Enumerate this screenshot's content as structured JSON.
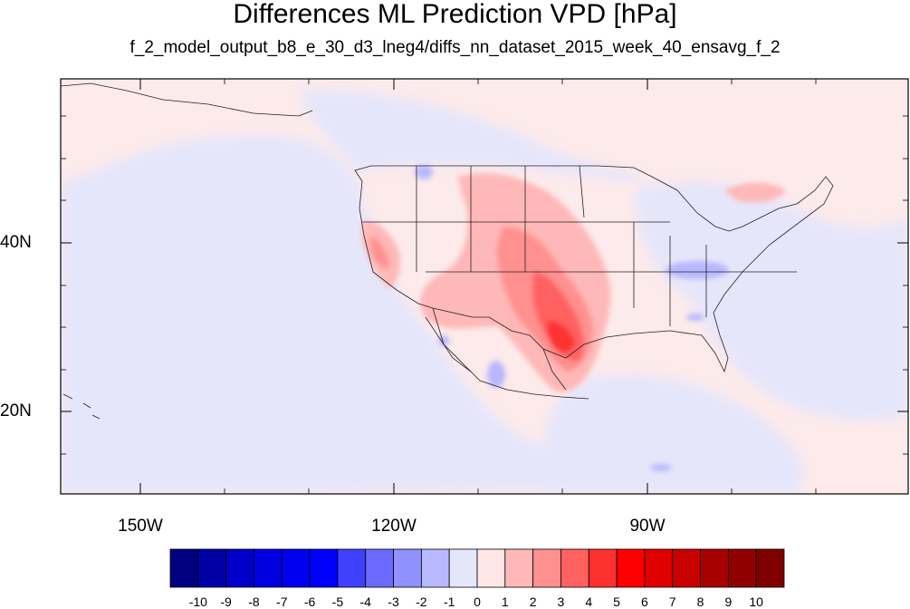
{
  "title": "Differences ML Prediction VPD [hPa]",
  "subtitle": "f_2_model_output_b8_e_30_d3_lneg4/diffs_nn_dataset_2015_week_40_ensavg_f_2",
  "map": {
    "lat_labels": [
      "40N",
      "20N"
    ],
    "lon_labels": [
      "150W",
      "120W",
      "90W"
    ],
    "background_color": "#fdeaea",
    "land_ocean_tint": "#e6e6fa"
  },
  "colorbar": {
    "labels": [
      "-10",
      "-9",
      "-8",
      "-7",
      "-6",
      "-5",
      "-4",
      "-3",
      "-2",
      "-1",
      "0",
      "1",
      "2",
      "3",
      "4",
      "5",
      "6",
      "7",
      "8",
      "9",
      "10"
    ],
    "colors": [
      "#000080",
      "#0000a6",
      "#0000c8",
      "#0000e0",
      "#0000f0",
      "#0000ff",
      "#4040ff",
      "#6a6aff",
      "#9090ff",
      "#b8b8ff",
      "#e6e6fa",
      "#ffe6e6",
      "#ffb8b8",
      "#ff9090",
      "#ff6060",
      "#ff3030",
      "#ff0000",
      "#e00000",
      "#c80000",
      "#a80000",
      "#900000",
      "#800000"
    ]
  }
}
